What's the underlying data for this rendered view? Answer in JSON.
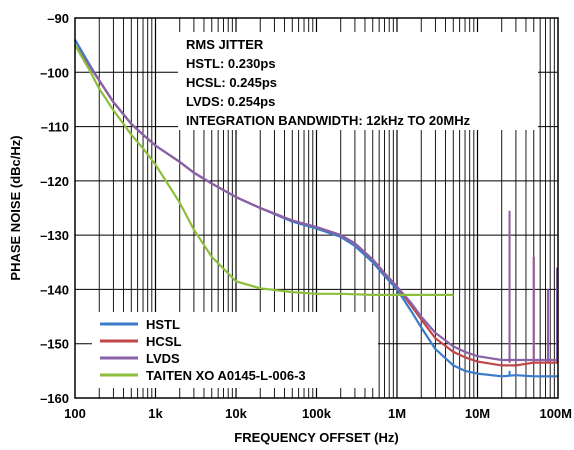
{
  "chart_data": {
    "type": "line",
    "xlabel": "FREQUENCY OFFSET (Hz)",
    "ylabel": "PHASE NOISE (dBc/Hz)",
    "x_scale": "log",
    "xlim": [
      100,
      100000000
    ],
    "ylim": [
      -160,
      -90
    ],
    "grid": true,
    "x_ticks": [
      {
        "value": 100,
        "label": "100"
      },
      {
        "value": 1000,
        "label": "1k"
      },
      {
        "value": 10000,
        "label": "10k"
      },
      {
        "value": 100000,
        "label": "100k"
      },
      {
        "value": 1000000,
        "label": "1M"
      },
      {
        "value": 10000000,
        "label": "10M"
      },
      {
        "value": 100000000,
        "label": "100M"
      }
    ],
    "y_ticks": [
      {
        "value": -90,
        "label": "–90"
      },
      {
        "value": -100,
        "label": "–100"
      },
      {
        "value": -110,
        "label": "–110"
      },
      {
        "value": -120,
        "label": "–120"
      },
      {
        "value": -130,
        "label": "–130"
      },
      {
        "value": -140,
        "label": "–140"
      },
      {
        "value": -150,
        "label": "–150"
      },
      {
        "value": -160,
        "label": "–160"
      }
    ],
    "annotation": [
      "RMS JITTER",
      "HSTL: 0.230ps",
      "HCSL: 0.245ps",
      "LVDS: 0.254ps",
      "INTEGRATION BANDWIDTH: 12kHz TO 20MHz"
    ],
    "legend_position": "bottom-left",
    "series": [
      {
        "name": "HSTL",
        "color": "#3a7cc8",
        "x": [
          100,
          150,
          200,
          300,
          500,
          700,
          1000,
          2000,
          3000,
          5000,
          10000,
          20000,
          50000,
          100000,
          200000,
          300000,
          500000,
          700000,
          1000000,
          1500000,
          2000000,
          3000000,
          5000000,
          7000000,
          10000000,
          20000000,
          30000000,
          50000000,
          100000000
        ],
        "y": [
          -94,
          -98.5,
          -101.5,
          -105.5,
          -109.5,
          -111.5,
          -113.5,
          -116.5,
          -118.5,
          -120.5,
          -123,
          -125,
          -127.5,
          -128.8,
          -130.3,
          -132,
          -135,
          -137.5,
          -140,
          -144,
          -147,
          -151,
          -154,
          -155,
          -155.5,
          -156,
          -155.8,
          -156,
          -156
        ],
        "spurs": [
          {
            "x": 25000000,
            "y": -155
          },
          {
            "x": 50000000,
            "y": -156
          },
          {
            "x": 75000000,
            "y": -156
          },
          {
            "x": 100000000,
            "y": -156
          }
        ]
      },
      {
        "name": "HCSL",
        "color": "#c0474a",
        "x": [
          100,
          150,
          200,
          300,
          500,
          700,
          1000,
          2000,
          3000,
          5000,
          10000,
          20000,
          50000,
          100000,
          200000,
          300000,
          500000,
          700000,
          1000000,
          1500000,
          2000000,
          3000000,
          5000000,
          7000000,
          10000000,
          20000000,
          30000000,
          50000000,
          100000000
        ],
        "y": [
          -95,
          -98.8,
          -101.5,
          -105.5,
          -109.5,
          -111.5,
          -113.5,
          -116.5,
          -118.5,
          -120.5,
          -123,
          -125,
          -127.3,
          -128.5,
          -130,
          -131.5,
          -134.5,
          -137,
          -139.5,
          -143,
          -145.5,
          -149,
          -151.5,
          -152.5,
          -153.3,
          -154,
          -154,
          -153.5,
          -153.5
        ],
        "spurs": [
          {
            "x": 25000000,
            "y": -126
          },
          {
            "x": 50000000,
            "y": -134
          },
          {
            "x": 75000000,
            "y": -140
          },
          {
            "x": 100000000,
            "y": -136
          }
        ]
      },
      {
        "name": "LVDS",
        "color": "#8a62a8",
        "x": [
          100,
          150,
          200,
          300,
          500,
          700,
          1000,
          2000,
          3000,
          5000,
          10000,
          20000,
          50000,
          100000,
          200000,
          300000,
          500000,
          700000,
          1000000,
          1500000,
          2000000,
          3000000,
          5000000,
          7000000,
          10000000,
          20000000,
          30000000,
          50000000,
          100000000
        ],
        "y": [
          -95,
          -98.8,
          -101.5,
          -105.5,
          -109.5,
          -111.5,
          -113.5,
          -116.5,
          -118.5,
          -120.5,
          -123,
          -125,
          -127.3,
          -128.5,
          -130,
          -131.5,
          -134.5,
          -137,
          -139.5,
          -142.5,
          -145,
          -148,
          -150.5,
          -151.5,
          -152.3,
          -153,
          -153,
          -153,
          -153
        ],
        "spurs": [
          {
            "x": 25000000,
            "y": -125.5
          },
          {
            "x": 50000000,
            "y": -134
          },
          {
            "x": 75000000,
            "y": -140
          },
          {
            "x": 100000000,
            "y": -136
          }
        ]
      },
      {
        "name": "TAITEN XO A0145-L-006-3",
        "color": "#8dbf3c",
        "x": [
          100,
          150,
          200,
          300,
          400,
          500,
          700,
          1000,
          2000,
          3000,
          5000,
          10000,
          20000,
          50000,
          100000,
          200000,
          500000,
          1000000,
          2000000,
          5000000
        ],
        "y": [
          -95,
          -99.5,
          -103,
          -107,
          -109.5,
          -111.5,
          -114,
          -117,
          -124,
          -129,
          -134,
          -138.5,
          -139.8,
          -140.5,
          -140.8,
          -140.8,
          -141,
          -141,
          -141,
          -141
        ],
        "spurs": []
      }
    ]
  }
}
